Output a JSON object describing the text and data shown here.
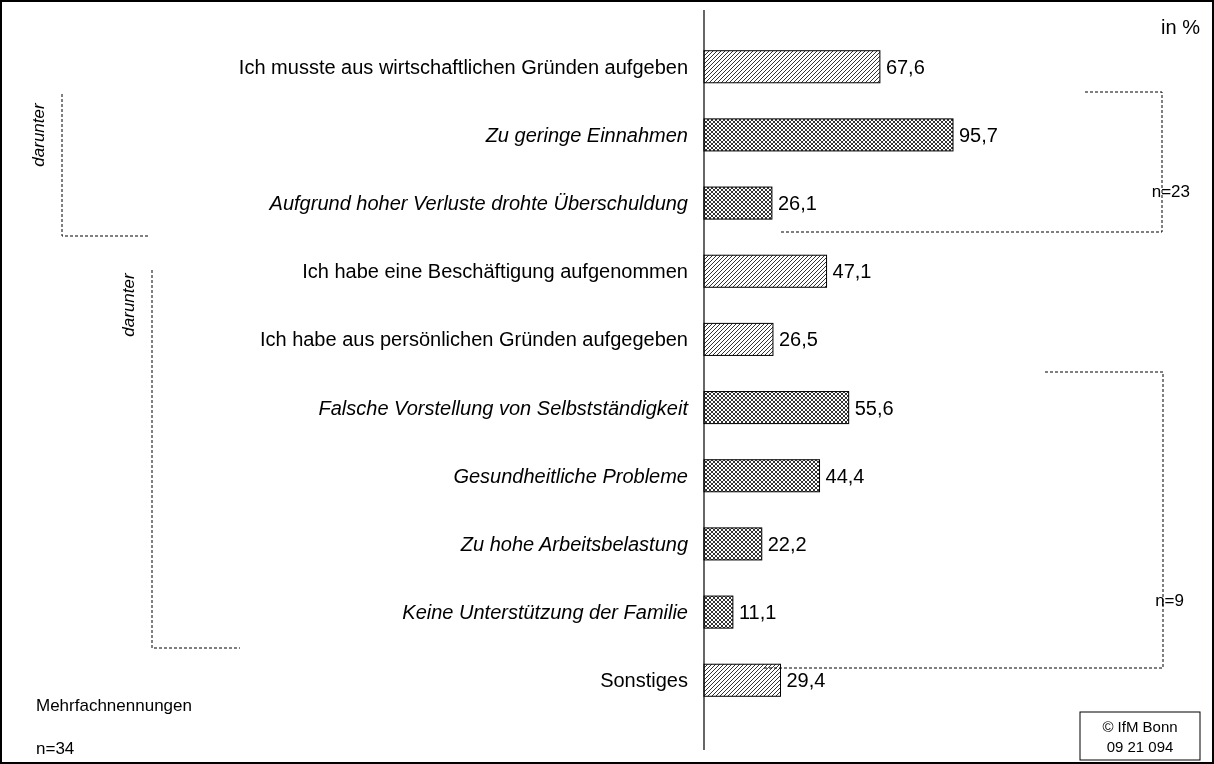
{
  "chart_data": {
    "type": "bar",
    "orientation": "horizontal",
    "categories": [
      "Ich musste aus wirtschaftlichen Gründen aufgeben",
      "Zu geringe Einnahmen",
      "Aufgrund hoher Verluste drohte Überschuldung",
      "Ich habe eine Beschäftigung aufgenommen",
      "Ich habe aus persönlichen Gründen aufgegeben",
      "Falsche Vorstellung von Selbstständigkeit",
      "Gesundheitliche Probleme",
      "Zu hohe Arbeitsbelastung",
      "Keine Unterstützung der Familie",
      "Sonstiges"
    ],
    "series": [
      {
        "color": "#000000",
        "values": [
          67.6,
          null,
          null,
          47.1,
          26.5,
          null,
          null,
          null,
          null,
          29.4
        ],
        "value_labels": [
          "67,6",
          null,
          null,
          "47,1",
          "26,5",
          null,
          null,
          null,
          null,
          "29,4"
        ]
      },
      {
        "color": "#000000",
        "values": [
          null,
          95.7,
          26.1,
          null,
          null,
          55.6,
          44.4,
          22.2,
          11.1,
          null
        ],
        "value_labels": [
          null,
          "95,7",
          "26,1",
          null,
          null,
          "55,6",
          "44,4",
          "22,2",
          "11,1",
          null
        ]
      }
    ],
    "annotations": [
      "in %",
      "darunter",
      "n=23",
      "darunter",
      "n=9",
      "Mehrfachnennungen",
      "n=34",
      "© IfM Bonn",
      "09 21 094"
    ]
  }
}
